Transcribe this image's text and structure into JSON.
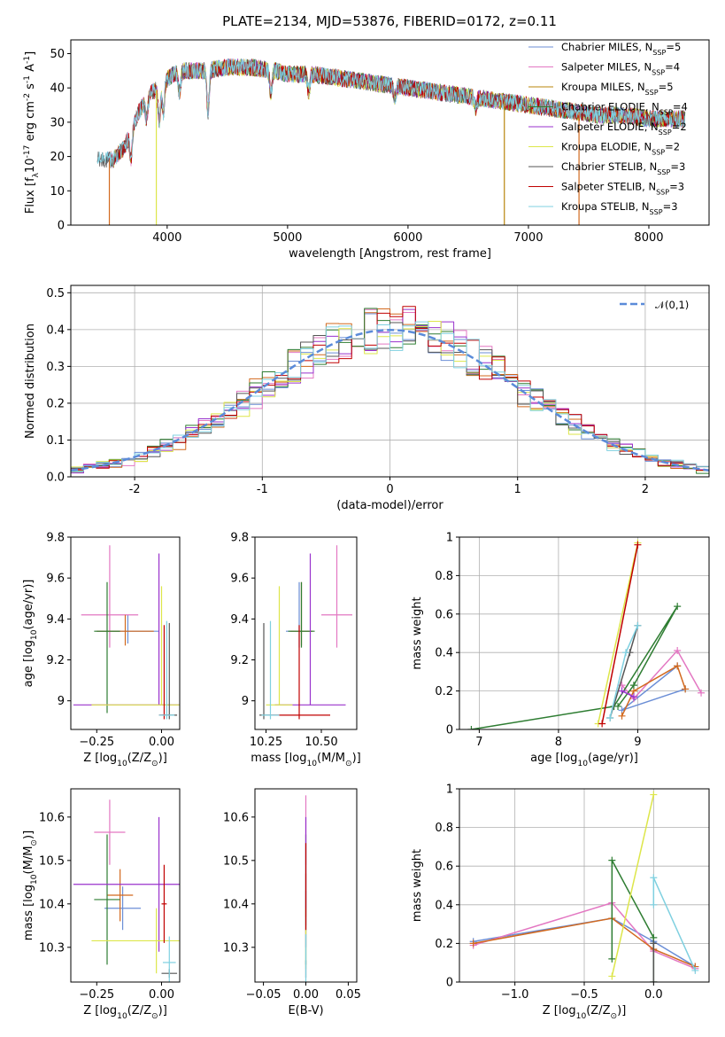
{
  "chart_data": [
    {
      "id": "spectrum",
      "type": "line",
      "title": "PLATE=2134, MJD=53876, FIBERID=0172, z=0.11",
      "xlabel": "wavelength [Angstrom, rest frame]",
      "ylabel": "Flux [f$_\\lambda$10$^{-17}$ erg cm$^{-2}$ s$^{-1}$ A$^{-1}$]",
      "xlim": [
        3200,
        8500
      ],
      "ylim": [
        0,
        54
      ],
      "xticks": [
        4000,
        5000,
        6000,
        7000,
        8000
      ],
      "yticks": [
        0,
        10,
        20,
        30,
        40,
        50
      ],
      "grid": false,
      "legend_position": "right",
      "continuum": {
        "x": [
          3450,
          3550,
          3650,
          3750,
          3850,
          3950,
          4050,
          4150,
          4300,
          4500,
          4700,
          4900,
          5000,
          5200,
          5400,
          5600,
          5800,
          6000,
          6200,
          6400,
          6600,
          6800,
          7000,
          7200,
          7400,
          7600,
          7800,
          8000,
          8200,
          8300
        ],
        "y": [
          19,
          19,
          23,
          32,
          38,
          41,
          44,
          45,
          45,
          46,
          46,
          45,
          44,
          44,
          43,
          42,
          41,
          40,
          39,
          38,
          37,
          36,
          35,
          34,
          33,
          32,
          32,
          31,
          31,
          31
        ]
      },
      "absorption_features": [
        {
          "x": 3700,
          "depth": 8
        },
        {
          "x": 3830,
          "depth": 6
        },
        {
          "x": 3934,
          "depth": 10
        },
        {
          "x": 3968,
          "depth": 9
        },
        {
          "x": 4102,
          "depth": 6
        },
        {
          "x": 4340,
          "depth": 12
        },
        {
          "x": 4861,
          "depth": 7
        },
        {
          "x": 5175,
          "depth": 5
        },
        {
          "x": 5890,
          "depth": 4
        },
        {
          "x": 6563,
          "depth": 3
        }
      ],
      "series": [
        {
          "name": "Chabrier MILES, N$_{SSP}$=5",
          "color": "#6b8ed6",
          "start": 3500
        },
        {
          "name": "Salpeter MILES, N$_{SSP}$=4",
          "color": "#e377c2",
          "start": 3520
        },
        {
          "name": "Kroupa MILES, N$_{SSP}$=5",
          "color": "#b8860b",
          "start": 3540
        },
        {
          "name": "Chabrier ELODIE, N$_{SSP}$=4",
          "color": "#2e7d32",
          "start": 3920
        },
        {
          "name": "Salpeter ELODIE, N$_{SSP}$=2",
          "color": "#9932cc",
          "start": 3910
        },
        {
          "name": "Kroupa ELODIE, N$_{SSP}$=2",
          "color": "#dde64a",
          "start": 3905
        },
        {
          "name": "Chabrier STELIB, N$_{SSP}$=3",
          "color": "#555555",
          "start": 3420
        },
        {
          "name": "Salpeter STELIB, N$_{SSP}$=3",
          "color": "#c00000",
          "start": 3520
        },
        {
          "name": "Kroupa STELIB, N$_{SSP}$=3",
          "color": "#7fd0e0",
          "start": 3420
        }
      ],
      "dropout_lines": [
        {
          "x": 3520,
          "color": "#d2691e"
        },
        {
          "x": 3910,
          "color": "#dde64a"
        },
        {
          "x": 6800,
          "color": "#b8860b"
        },
        {
          "x": 7420,
          "color": "#d2691e"
        }
      ]
    },
    {
      "id": "residuals",
      "type": "line",
      "title": "",
      "xlabel": "(data-model)/error",
      "ylabel": "Normed distribution",
      "xlim": [
        -2.5,
        2.5
      ],
      "ylim": [
        0,
        0.52
      ],
      "xticks": [
        -2,
        -1,
        0,
        1,
        2
      ],
      "yticks": [
        0.0,
        0.1,
        0.2,
        0.3,
        0.4,
        0.5
      ],
      "grid": true,
      "legend_position": "top-right",
      "gaussian": {
        "name": "$\\mathcal{N}(0,1)$",
        "mean": 0,
        "sigma": 1,
        "color": "#5b8bd9"
      },
      "bin_width": 0.1,
      "hist_colors": [
        "#6b8ed6",
        "#e377c2",
        "#d2691e",
        "#2e7d32",
        "#9932cc",
        "#dde64a",
        "#555555",
        "#c00000",
        "#7fd0e0"
      ]
    },
    {
      "id": "age-Z",
      "type": "scatter",
      "xlabel": "Z [log$_{10}$(Z/Z$_\\odot$)]",
      "ylabel": "age  [log$_{10}$(age/yr)]",
      "xlim": [
        -0.35,
        0.07
      ],
      "ylim": [
        8.86,
        9.8
      ],
      "xticks": [
        -0.25,
        0.0
      ],
      "xtick_labels": [
        "−0.25",
        "0.00"
      ],
      "yticks": [
        9.0,
        9.2,
        9.4,
        9.6,
        9.8
      ],
      "points": [
        {
          "x": -0.13,
          "y": 9.34,
          "xerr": 0.12,
          "yerr": [
            0.06,
            0.08
          ],
          "color": "#6b8ed6"
        },
        {
          "x": -0.2,
          "y": 9.42,
          "xerr": 0.11,
          "yerr": [
            0.16,
            0.34
          ],
          "color": "#e377c2"
        },
        {
          "x": -0.14,
          "y": 9.34,
          "xerr": 0.11,
          "yerr": [
            0.07,
            0.08
          ],
          "color": "#d2691e"
        },
        {
          "x": -0.21,
          "y": 9.34,
          "xerr": 0.05,
          "yerr": [
            0.4,
            0.24
          ],
          "color": "#2e7d32"
        },
        {
          "x": -0.01,
          "y": 8.98,
          "xerr": 0.33,
          "yerr": [
            0.0,
            0.74
          ],
          "color": "#9932cc"
        },
        {
          "x": 0.0,
          "y": 8.98,
          "xerr": 0.27,
          "yerr": [
            0.0,
            0.58
          ],
          "color": "#dde64a"
        },
        {
          "x": 0.03,
          "y": 8.93,
          "xerr": 0.03,
          "yerr": [
            0.02,
            0.45
          ],
          "color": "#555555"
        },
        {
          "x": 0.01,
          "y": 8.93,
          "xerr": 0.02,
          "yerr": [
            0.02,
            0.44
          ],
          "color": "#c00000"
        },
        {
          "x": 0.02,
          "y": 8.93,
          "xerr": 0.03,
          "yerr": [
            0.02,
            0.46
          ],
          "color": "#7fd0e0"
        }
      ]
    },
    {
      "id": "age-mass",
      "type": "scatter",
      "xlabel": "mass [log$_{10}$(M/M$_\\odot$)]",
      "ylabel": "",
      "xlim": [
        10.2,
        10.66
      ],
      "ylim": [
        8.86,
        9.8
      ],
      "xticks": [
        10.25,
        10.5
      ],
      "xtick_labels": [
        "10.25",
        "10.50"
      ],
      "extra_tick_label": "10.50",
      "yticks": [
        9.0,
        9.2,
        9.4,
        9.6,
        9.8
      ],
      "points": [
        {
          "x": 10.4,
          "y": 9.34,
          "xerr": 0.06,
          "yerr": [
            0.08,
            0.24
          ],
          "color": "#6b8ed6"
        },
        {
          "x": 10.57,
          "y": 9.42,
          "xerr": 0.07,
          "yerr": [
            0.16,
            0.34
          ],
          "color": "#e377c2"
        },
        {
          "x": 10.41,
          "y": 9.34,
          "xerr": 0.05,
          "yerr": [
            0.07,
            0.24
          ],
          "color": "#d2691e"
        },
        {
          "x": 10.41,
          "y": 9.34,
          "xerr": 0.06,
          "yerr": [
            0.08,
            0.24
          ],
          "color": "#2e7d32"
        },
        {
          "x": 10.45,
          "y": 8.98,
          "xerr": 0.16,
          "yerr": [
            0.0,
            0.74
          ],
          "color": "#9932cc"
        },
        {
          "x": 10.31,
          "y": 8.98,
          "xerr": 0.06,
          "yerr": [
            0.0,
            0.58
          ],
          "color": "#dde64a"
        },
        {
          "x": 10.24,
          "y": 8.93,
          "xerr": 0.02,
          "yerr": [
            0.02,
            0.45
          ],
          "color": "#555555"
        },
        {
          "x": 10.4,
          "y": 8.93,
          "xerr": 0.14,
          "yerr": [
            0.02,
            0.44
          ],
          "color": "#c00000"
        },
        {
          "x": 10.27,
          "y": 8.93,
          "xerr": 0.04,
          "yerr": [
            0.02,
            0.46
          ],
          "color": "#7fd0e0"
        }
      ]
    },
    {
      "id": "weight-age",
      "type": "line",
      "xlabel": "age  [log$_{10}$(age/yr)]",
      "ylabel": "mass weight",
      "xlim": [
        6.75,
        9.9
      ],
      "ylim": [
        0,
        1.0
      ],
      "xticks": [
        7,
        8,
        9
      ],
      "yticks": [
        0.0,
        0.2,
        0.4,
        0.6,
        0.8,
        1.0
      ],
      "grid": true,
      "series": [
        {
          "color": "#6b8ed6",
          "x": [
            9.5,
            8.8,
            9.6
          ],
          "y": [
            0.33,
            0.1,
            0.21
          ]
        },
        {
          "color": "#e377c2",
          "x": [
            9.8,
            9.5,
            8.95,
            8.8
          ],
          "y": [
            0.19,
            0.41,
            0.16,
            0.23
          ]
        },
        {
          "color": "#d2691e",
          "x": [
            9.6,
            9.5,
            8.95,
            8.8
          ],
          "y": [
            0.21,
            0.33,
            0.2,
            0.07
          ]
        },
        {
          "color": "#2e7d32",
          "x": [
            6.9,
            8.7,
            9.5,
            8.95,
            8.75
          ],
          "y": [
            0.0,
            0.12,
            0.64,
            0.23,
            0.12
          ]
        },
        {
          "color": "#9932cc",
          "x": [
            8.95,
            8.8
          ],
          "y": [
            0.17,
            0.2
          ]
        },
        {
          "color": "#dde64a",
          "x": [
            8.5,
            9.0
          ],
          "y": [
            0.03,
            0.97
          ]
        },
        {
          "color": "#555555",
          "x": [
            8.65,
            8.9,
            9.0
          ],
          "y": [
            0.06,
            0.4,
            0.54
          ]
        },
        {
          "color": "#c00000",
          "x": [
            8.55,
            9.0
          ],
          "y": [
            0.03,
            0.96
          ]
        },
        {
          "color": "#7fd0e0",
          "x": [
            8.65,
            8.85,
            9.0
          ],
          "y": [
            0.06,
            0.4,
            0.54
          ]
        }
      ]
    },
    {
      "id": "mass-Z",
      "type": "scatter",
      "xlabel": "Z [log$_{10}$(Z/Z$_\\odot$)]",
      "ylabel": "mass [log$_{10}$(M/M$_\\odot$)]",
      "xlim": [
        -0.35,
        0.07
      ],
      "ylim": [
        10.22,
        10.665
      ],
      "xticks": [
        -0.25,
        0.0
      ],
      "xtick_labels": [
        "−0.25",
        "0.00"
      ],
      "yticks": [
        10.3,
        10.4,
        10.5,
        10.6
      ],
      "points": [
        {
          "x": -0.15,
          "y": 10.39,
          "xerr": 0.07,
          "yerr": 0.05,
          "color": "#6b8ed6"
        },
        {
          "x": -0.2,
          "y": 10.565,
          "xerr": 0.06,
          "yerr": 0.075,
          "color": "#e377c2"
        },
        {
          "x": -0.16,
          "y": 10.42,
          "xerr": 0.05,
          "yerr": 0.06,
          "color": "#d2691e"
        },
        {
          "x": -0.21,
          "y": 10.41,
          "xerr": 0.05,
          "yerr": 0.15,
          "color": "#2e7d32"
        },
        {
          "x": -0.01,
          "y": 10.445,
          "xerr": 0.33,
          "yerr": 0.155,
          "color": "#9932cc"
        },
        {
          "x": -0.02,
          "y": 10.315,
          "xerr": 0.25,
          "yerr": 0.075,
          "color": "#dde64a"
        },
        {
          "x": 0.03,
          "y": 10.24,
          "xerr": 0.03,
          "yerr": 0.01,
          "color": "#555555"
        },
        {
          "x": 0.01,
          "y": 10.4,
          "xerr": 0.01,
          "yerr": 0.09,
          "color": "#c00000"
        },
        {
          "x": 0.03,
          "y": 10.265,
          "xerr": 0.025,
          "yerr": 0.06,
          "color": "#7fd0e0"
        }
      ]
    },
    {
      "id": "mass-EBV",
      "type": "scatter",
      "xlabel": "E(B-V)",
      "ylabel": "",
      "xlim": [
        -0.06,
        0.06
      ],
      "ylim": [
        10.22,
        10.665
      ],
      "xticks": [
        -0.05,
        0.0,
        0.05
      ],
      "xtick_labels": [
        "−0.05",
        "0.00",
        "0.05"
      ],
      "yticks": [
        10.3,
        10.4,
        10.5,
        10.6
      ],
      "points": [
        {
          "x": 0.0,
          "y": 10.39,
          "yerr": 0.04,
          "color": "#6b8ed6"
        },
        {
          "x": 0.0,
          "y": 10.57,
          "yerr": 0.08,
          "color": "#e377c2"
        },
        {
          "x": 0.0,
          "y": 10.42,
          "yerr": 0.05,
          "color": "#d2691e"
        },
        {
          "x": 0.0,
          "y": 10.41,
          "yerr": 0.15,
          "color": "#2e7d32"
        },
        {
          "x": 0.0,
          "y": 10.45,
          "yerr": 0.15,
          "color": "#9932cc"
        },
        {
          "x": 0.0,
          "y": 10.32,
          "yerr": 0.07,
          "color": "#dde64a"
        },
        {
          "x": 0.0,
          "y": 10.25,
          "yerr": 0.02,
          "color": "#555555"
        },
        {
          "x": 0.0,
          "y": 10.44,
          "yerr": 0.1,
          "color": "#c00000"
        },
        {
          "x": 0.0,
          "y": 10.27,
          "yerr": 0.06,
          "color": "#7fd0e0"
        }
      ]
    },
    {
      "id": "weight-Z",
      "type": "line",
      "xlabel": "Z [log$_{10}$(Z/Z$_\\odot$)]",
      "ylabel": "mass weight",
      "xlim": [
        -1.4,
        0.4
      ],
      "ylim": [
        0,
        1.0
      ],
      "xticks": [
        -1.0,
        -0.5,
        0.0
      ],
      "xtick_labels": [
        "−1.0",
        "−0.5",
        "0.0"
      ],
      "yticks": [
        0.0,
        0.2,
        0.4,
        0.6,
        0.8,
        1.0
      ],
      "grid": true,
      "series": [
        {
          "color": "#6b8ed6",
          "x": [
            -1.3,
            -0.3,
            0.0,
            0.3
          ],
          "y": [
            0.21,
            0.33,
            0.21,
            0.08
          ]
        },
        {
          "color": "#e377c2",
          "x": [
            -1.3,
            -0.3,
            0.0,
            0.3
          ],
          "y": [
            0.19,
            0.41,
            0.16,
            0.07
          ]
        },
        {
          "color": "#d2691e",
          "x": [
            -1.3,
            -0.3,
            0.0,
            0.3
          ],
          "y": [
            0.2,
            0.33,
            0.17,
            0.08
          ]
        },
        {
          "color": "#2e7d32",
          "x": [
            -0.3,
            -0.3,
            0.0,
            0.0
          ],
          "y": [
            0.12,
            0.63,
            0.23,
            0.0
          ]
        },
        {
          "color": "#dde64a",
          "x": [
            -0.3,
            0.0
          ],
          "y": [
            0.03,
            0.97
          ]
        },
        {
          "color": "#555555",
          "x": [
            0.0,
            0.0
          ],
          "y": [
            0.0,
            0.2
          ]
        },
        {
          "color": "#7fd0e0",
          "x": [
            0.0,
            0.0,
            0.3
          ],
          "y": [
            0.4,
            0.54,
            0.06
          ]
        }
      ]
    }
  ]
}
